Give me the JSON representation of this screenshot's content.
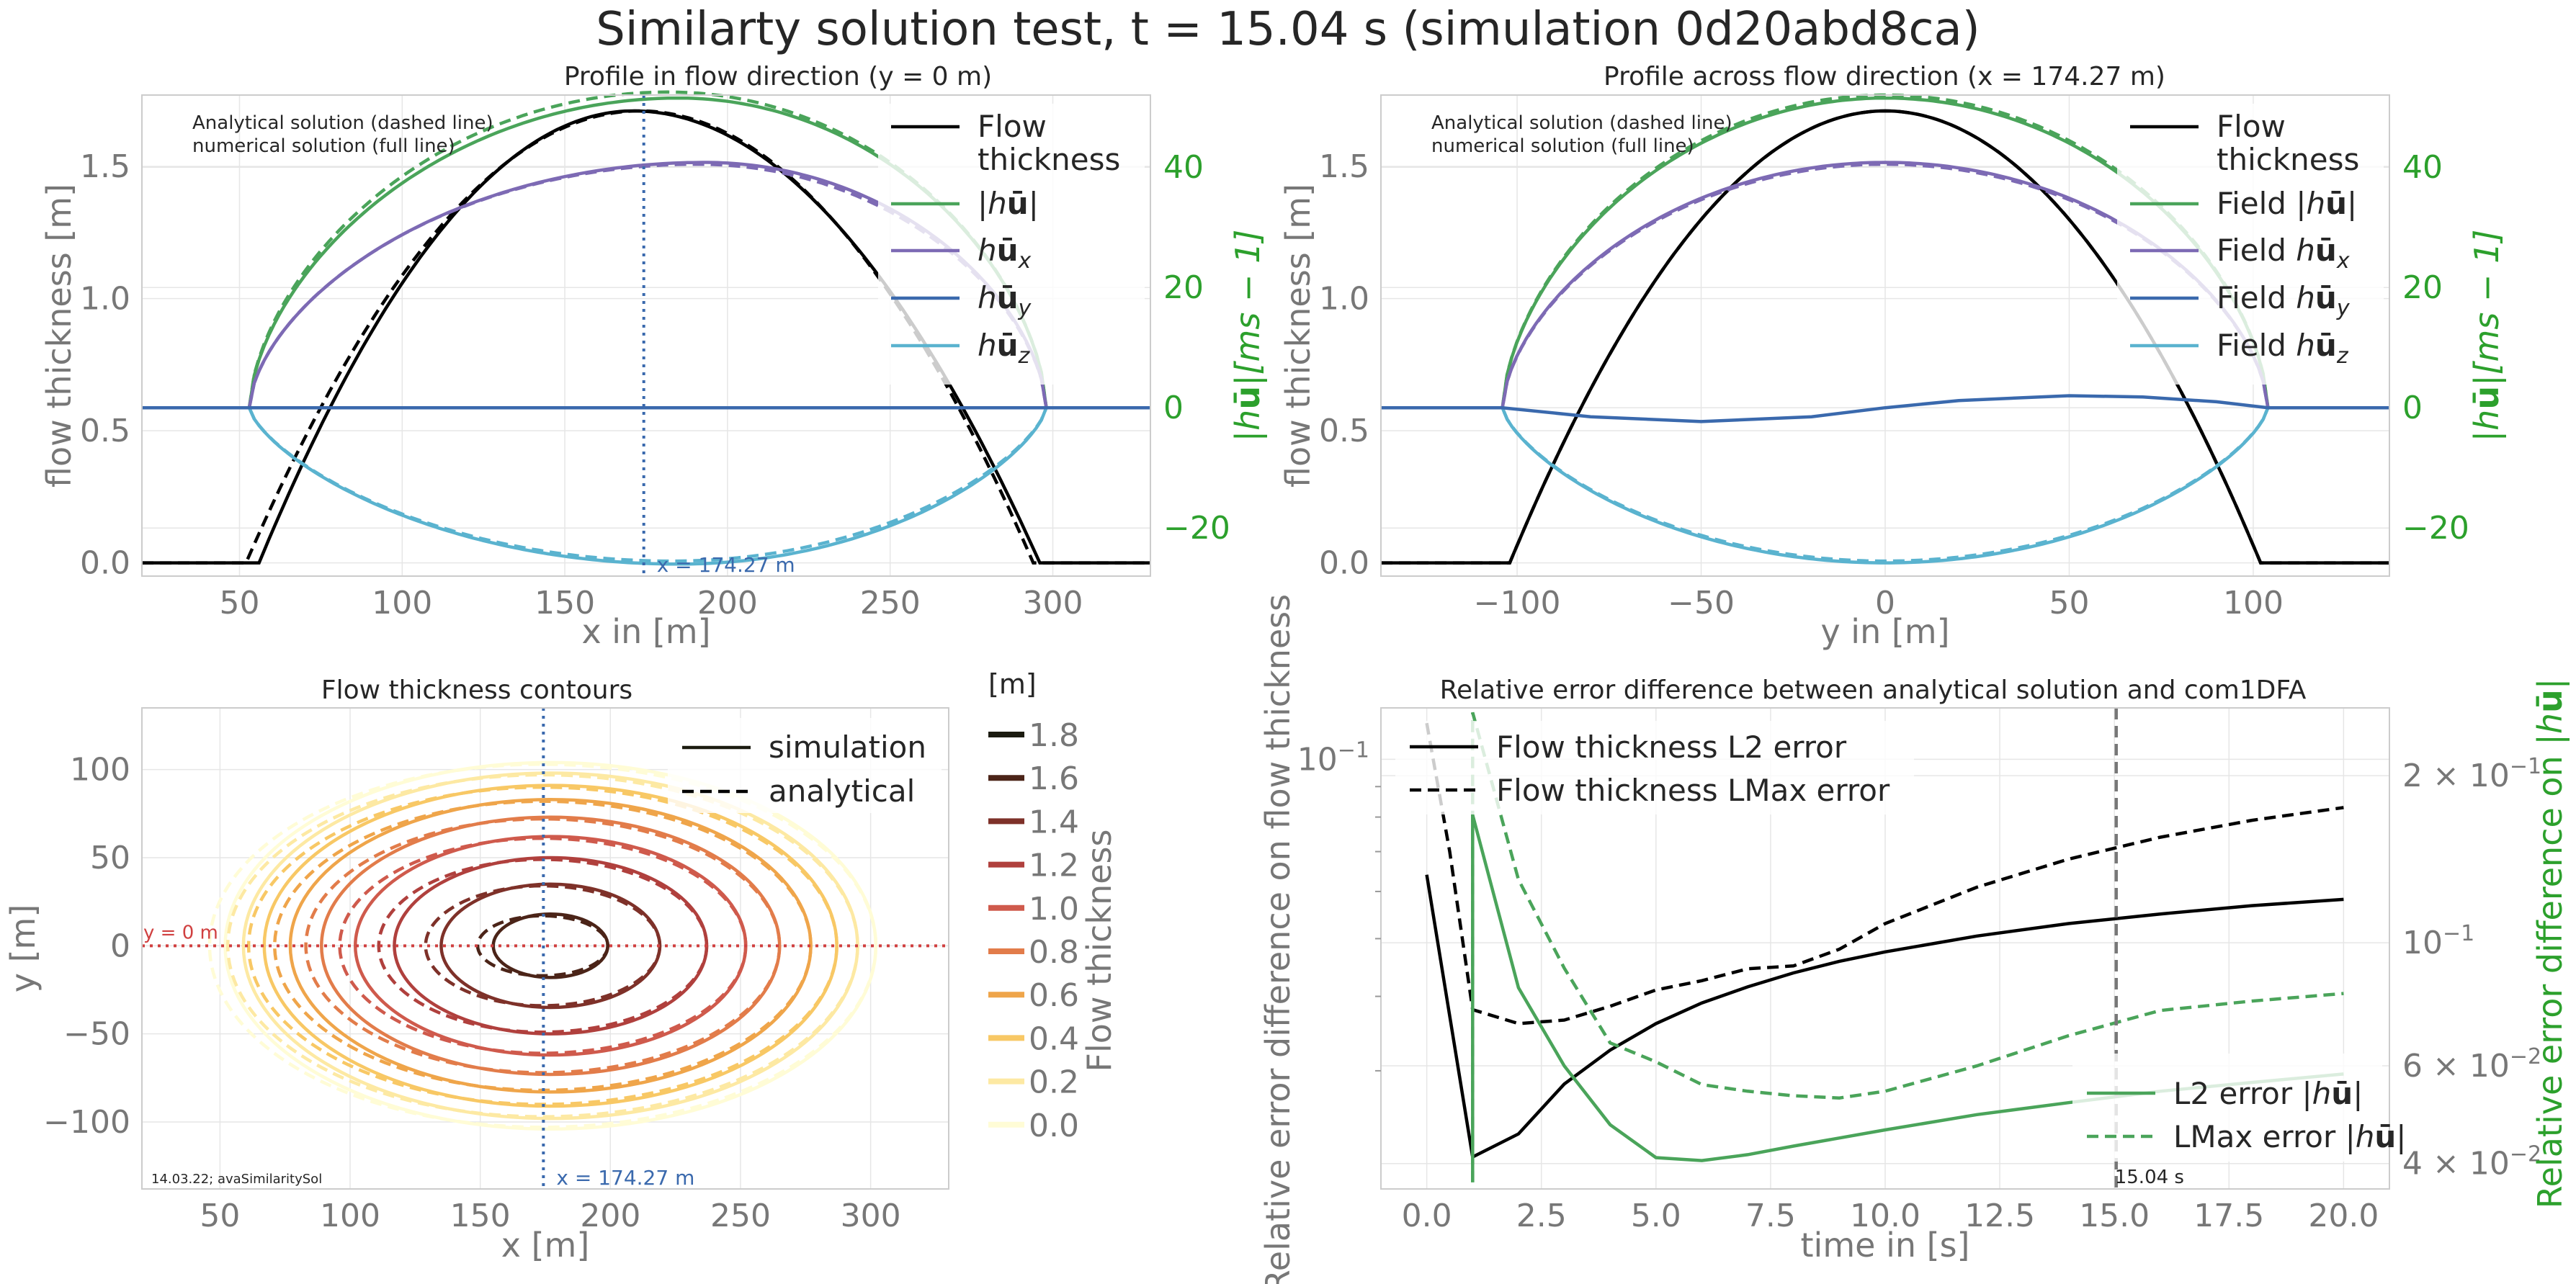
{
  "suptitle": "Similarty solution test, t = 15.04 s (simulation 0d20abd8ca)",
  "colors": {
    "thickness": "#000000",
    "magnitude": "#4aa45a",
    "hux": "#7d6ab4",
    "huy": "#3a69ad",
    "huz": "#5ab3cf",
    "green_axis": "#2ca02c",
    "grey_text": "#777777",
    "red_line": "#d04040",
    "blue_line": "#3a69ad"
  },
  "chart_data": [
    {
      "type": "line",
      "title": "Profile in flow direction (y = 0 m)",
      "xlabel": "x in [m]",
      "ylabel": "flow thickness [m]",
      "y2label": "|hū|[ms − 1]",
      "xlim": [
        20,
        330
      ],
      "ylim": [
        -0.05,
        1.77
      ],
      "y2lim": [
        -28,
        52
      ],
      "xticks": [
        "50",
        "100",
        "150",
        "200",
        "250",
        "300"
      ],
      "yticks": [
        "0.0",
        "0.5",
        "1.0",
        "1.5"
      ],
      "y2ticks": [
        "−20",
        "0",
        "20",
        "40"
      ],
      "annotation": "Analytical solution (dashed line)\n numerical solution (full line)",
      "vline_x": 174.27,
      "vline_label": "x = 174.27 m",
      "legend": [
        "Flow\nthickness",
        "|hū|",
        "hūx",
        "hūy",
        "hūz"
      ],
      "thickness": {
        "num": {
          "x0": 56,
          "x1": 296,
          "peak_x": 171,
          "peak": 1.71
        },
        "ana": {
          "x0": 52,
          "x1": 294,
          "peak_x": 173,
          "peak": 1.71
        }
      },
      "magnitude": {
        "num": {
          "x0": 53,
          "x1": 298,
          "peak_x": 185,
          "peak": 51.5
        },
        "ana": {
          "x0": 53,
          "x1": 298,
          "peak_x": 182,
          "peak": 52.5
        }
      },
      "hux": {
        "num": {
          "x0": 53,
          "x1": 298,
          "peak_x": 193,
          "peak": 40.8
        },
        "ana": {
          "x0": 53,
          "x1": 298,
          "peak_x": 191,
          "peak": 40.5
        }
      },
      "huy": {
        "value": 0
      },
      "huz": {
        "num": {
          "x0": 53,
          "x1": 298,
          "peak_x": 185,
          "peak": -26.0
        },
        "ana": {
          "x0": 53,
          "x1": 298,
          "peak_x": 183,
          "peak": -25.5
        }
      }
    },
    {
      "type": "line",
      "title": "Profile across flow direction (x = 174.27 m)",
      "xlabel": "y in [m]",
      "ylabel": "flow thickness [m]",
      "y2label": "|hū|[ms − 1]",
      "xlim": [
        -137,
        137
      ],
      "ylim": [
        -0.05,
        1.77
      ],
      "y2lim": [
        -28,
        52
      ],
      "xticks": [
        "−100",
        "−50",
        "0",
        "50",
        "100"
      ],
      "yticks": [
        "0.0",
        "0.5",
        "1.0",
        "1.5"
      ],
      "y2ticks": [
        "−20",
        "0",
        "20",
        "40"
      ],
      "annotation": "Analytical solution (dashed line)\n numerical solution (full line)",
      "legend": [
        "Flow\nthickness",
        "Field |hū|",
        "Field hūx",
        "Field hūy",
        "Field hūz"
      ],
      "thickness": {
        "num": {
          "x0": -102,
          "x1": 102,
          "peak_x": 0,
          "peak": 1.71
        },
        "ana": {
          "x0": -102,
          "x1": 102,
          "peak_x": 0,
          "peak": 1.71
        }
      },
      "magnitude": {
        "num": {
          "x0": -104,
          "x1": 104,
          "peak_x": 0,
          "peak": 51.5
        },
        "ana": {
          "x0": -104,
          "x1": 104,
          "peak_x": 0,
          "peak": 52.0
        }
      },
      "hux": {
        "num": {
          "x0": -104,
          "x1": 104,
          "peak_x": 0,
          "peak": 40.8
        },
        "ana": {
          "x0": -104,
          "x1": 104,
          "peak_x": 0,
          "peak": 40.5
        }
      },
      "huy": {
        "x": [
          -104,
          -80,
          -50,
          -20,
          0,
          20,
          50,
          70,
          90,
          104
        ],
        "y": [
          0,
          -1.5,
          -2.3,
          -1.5,
          0,
          1.2,
          2.0,
          1.8,
          1.0,
          0
        ]
      },
      "huz": {
        "num": {
          "x0": -104,
          "x1": 104,
          "peak_x": 0,
          "peak": -25.8
        },
        "ana": {
          "x0": -104,
          "x1": 104,
          "peak_x": 0,
          "peak": -25.5
        }
      }
    },
    {
      "type": "contour",
      "title": "Flow thickness contours",
      "xlabel": "x [m]",
      "ylabel": "y [m]",
      "xlim": [
        20,
        330
      ],
      "ylim": [
        -138,
        135
      ],
      "xticks": [
        "50",
        "100",
        "150",
        "200",
        "250",
        "300"
      ],
      "yticks": [
        "−100",
        "−50",
        "0",
        "50",
        "100"
      ],
      "center_x": 175,
      "levels": [
        0.0,
        0.2,
        0.4,
        0.6,
        0.8,
        1.0,
        1.2,
        1.4,
        1.6,
        1.8
      ],
      "level_labels": [
        "0.0",
        "0.2",
        "0.4",
        "0.6",
        "0.8",
        "1.0",
        "1.2",
        "1.4",
        "1.6",
        "1.8"
      ],
      "level_colors": [
        "#fffcd6",
        "#fde9a3",
        "#f8c865",
        "#efa54a",
        "#e27c4a",
        "#cf5a4c",
        "#b0403d",
        "#7e3129",
        "#4b2418",
        "#1b1b10"
      ],
      "ring_rx": [
        125,
        118,
        110,
        100,
        88,
        75,
        60,
        42,
        22
      ],
      "ring_ry": [
        104,
        98,
        91,
        83,
        73,
        62,
        50,
        35,
        18
      ],
      "legend": [
        "simulation",
        "analytical"
      ],
      "colorbar_unit": "[m]",
      "colorbar_label": "Flow thickness",
      "hline_label": "y = 0 m",
      "vline_label": "x = 174.27 m",
      "footnote": "14.03.22; avaSimilaritySol"
    },
    {
      "type": "line",
      "title": "Relative error difference between analytical solution and com1DFA",
      "xlabel": "time in [s]",
      "ylabel": "Relative error difference on flow thickness",
      "y2label": "Relative error difference on |hū|",
      "xlim": [
        -1.0,
        21.0
      ],
      "ylim_log": [
        0.019,
        0.122
      ],
      "y2lim_log": [
        0.036,
        0.265
      ],
      "xticks": [
        "0.0",
        "2.5",
        "5.0",
        "7.5",
        "10.0",
        "12.5",
        "15.0",
        "17.5",
        "20.0"
      ],
      "ytick_label": "10−1",
      "y2tick_labels": [
        "4 × 10−2",
        "6 × 10−2",
        "10−1",
        "2 × 10−1"
      ],
      "vline_x": 15.04,
      "vline_label": "15.04 s",
      "legend_left": [
        "Flow thickness L2 error",
        "Flow thickness LMax error"
      ],
      "legend_right": [
        "L2 error |hū|",
        "LMax error |hū|"
      ],
      "series": [
        {
          "name": "Flow thickness L2 error",
          "axis": "left",
          "style": "solid",
          "x": [
            0,
            1,
            2,
            3,
            4,
            5,
            6,
            7,
            8,
            9,
            10,
            12,
            14,
            16,
            18,
            20
          ],
          "y": [
            0.064,
            0.0215,
            0.0235,
            0.0285,
            0.0325,
            0.036,
            0.039,
            0.0415,
            0.0438,
            0.0458,
            0.0475,
            0.0505,
            0.053,
            0.055,
            0.0568,
            0.0582
          ]
        },
        {
          "name": "Flow thickness LMax error",
          "axis": "left",
          "style": "dashed",
          "x": [
            0,
            0.5,
            1,
            2,
            3,
            4,
            5,
            6,
            7,
            8,
            9,
            10,
            12,
            14,
            16,
            18,
            20
          ],
          "y": [
            0.115,
            0.07,
            0.038,
            0.036,
            0.0365,
            0.0385,
            0.041,
            0.0425,
            0.0445,
            0.045,
            0.048,
            0.053,
            0.061,
            0.068,
            0.074,
            0.079,
            0.083
          ]
        },
        {
          "name": "L2 error |hū|",
          "axis": "right",
          "style": "solid",
          "x": [
            1,
            1,
            2,
            3,
            4,
            5,
            6,
            7,
            8,
            10,
            12,
            14,
            16,
            18,
            20
          ],
          "y": [
            0.037,
            0.17,
            0.083,
            0.06,
            0.047,
            0.041,
            0.0405,
            0.0415,
            0.043,
            0.046,
            0.049,
            0.0515,
            0.054,
            0.056,
            0.058
          ]
        },
        {
          "name": "LMax error |hū|",
          "axis": "right",
          "style": "dashed",
          "x": [
            1,
            1,
            2,
            3,
            4,
            5,
            6,
            7,
            8,
            9,
            10,
            12,
            14,
            16,
            18,
            20
          ],
          "y": [
            0.037,
            0.26,
            0.13,
            0.09,
            0.066,
            0.061,
            0.0555,
            0.054,
            0.053,
            0.0525,
            0.054,
            0.06,
            0.068,
            0.0755,
            0.0785,
            0.081
          ]
        }
      ]
    }
  ]
}
